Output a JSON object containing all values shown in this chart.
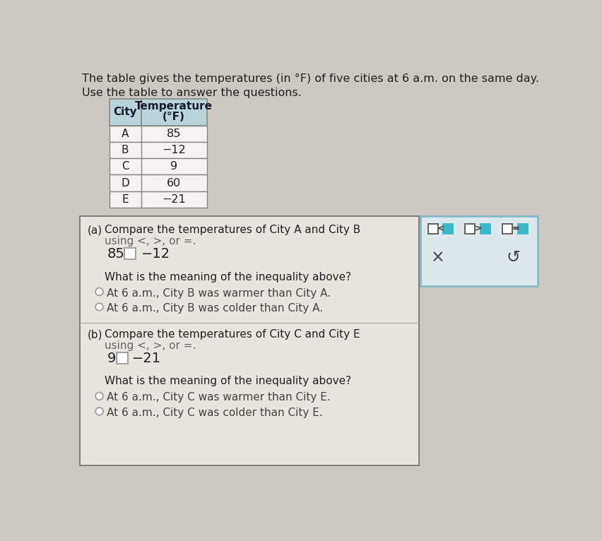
{
  "title_line1": "The table gives the temperatures (in °F) of five cities at 6 a.m. on the same day.",
  "title_line2": "Use the table to answer the questions.",
  "table_cities": [
    "A",
    "B",
    "C",
    "D",
    "E"
  ],
  "table_temps": [
    "85",
    "−12",
    "9",
    "60",
    "−21"
  ],
  "bg_color": "#cdc8c0",
  "table_header_bg": "#b8d4d8",
  "table_header_text": "#1a1a2e",
  "table_cell_bg": "#f5f3f0",
  "table_border": "#888888",
  "question_box_bg": "#e8e4de",
  "question_box_border": "#777777",
  "side_box_bg": "#dce8ec",
  "side_box_border": "#88b8c8",
  "teal_color": "#3ab8c8",
  "part_a_label": "(a)",
  "part_a_text1": "Compare the temperatures of City A and City B",
  "part_a_text2": "using <, >, or =.",
  "part_a_expr_left": "85",
  "part_a_expr_right": "−12",
  "part_a_meaning": "What is the meaning of the inequality above?",
  "part_a_option1": "At 6 a.m., City B was warmer than City A.",
  "part_a_option2": "At 6 a.m., City B was colder than City A.",
  "part_b_label": "(b)",
  "part_b_text1": "Compare the temperatures of City C and City E",
  "part_b_text2": "using <, >, or =.",
  "part_b_expr_left": "9",
  "part_b_expr_right": "−21",
  "part_b_meaning": "What is the meaning of the inequality above?",
  "part_b_option1": "At 6 a.m., City C was warmer than City E.",
  "part_b_option2": "At 6 a.m., City C was colder than City E.",
  "text_color": "#222222",
  "text_color2": "#444444",
  "text_color3": "#666666"
}
